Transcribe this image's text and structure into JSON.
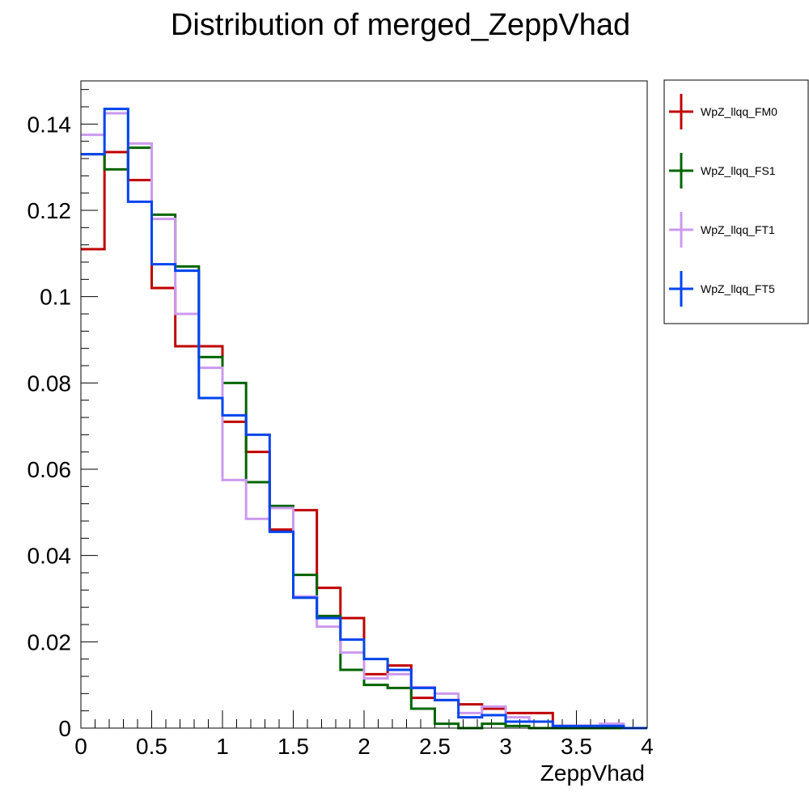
{
  "chart_data": {
    "type": "line",
    "title": "Distribution of merged_ZeppVhad",
    "xlabel": "ZeppVhad",
    "ylabel": "",
    "xlim": [
      0,
      4
    ],
    "ylim": [
      0,
      0.15
    ],
    "x_ticks": [
      0,
      0.5,
      1,
      1.5,
      2,
      2.5,
      3,
      3.5,
      4
    ],
    "x_tick_labels": [
      "0",
      "0.5",
      "1",
      "1.5",
      "2",
      "2.5",
      "3",
      "3.5",
      "4"
    ],
    "y_ticks": [
      0,
      0.02,
      0.04,
      0.06,
      0.08,
      0.1,
      0.12,
      0.14
    ],
    "y_tick_labels": [
      "0",
      "0.02",
      "0.04",
      "0.06",
      "0.08",
      "0.1",
      "0.12",
      "0.14"
    ],
    "bin_edges": [
      0,
      0.1667,
      0.3333,
      0.5,
      0.6667,
      0.8333,
      1.0,
      1.1667,
      1.3333,
      1.5,
      1.6667,
      1.8333,
      2.0,
      2.1667,
      2.3333,
      2.5,
      2.6667,
      2.8333,
      3.0,
      3.1667,
      3.3333,
      3.5,
      3.6667,
      3.8333,
      4.0
    ],
    "histogram_style": "step",
    "grid": false,
    "legend_position": "right-outside-top",
    "series": [
      {
        "name": "WpZ_llqq_FM0",
        "color": "#c00000",
        "values": [
          0.111,
          0.1335,
          0.127,
          0.102,
          0.0885,
          0.0885,
          0.071,
          0.064,
          0.046,
          0.0505,
          0.0325,
          0.0255,
          0.0125,
          0.0145,
          0.007,
          0.0065,
          0.0055,
          0.0045,
          0.0035,
          0.0035,
          0.0005,
          0.0005,
          0.0005,
          0.0
        ]
      },
      {
        "name": "WpZ_llqq_FS1",
        "color": "#006400",
        "values": [
          0.133,
          0.1295,
          0.1345,
          0.119,
          0.107,
          0.086,
          0.08,
          0.057,
          0.0515,
          0.0355,
          0.026,
          0.0135,
          0.01,
          0.0093,
          0.0045,
          0.001,
          0.0,
          0.001,
          0.0005,
          0.0,
          0.0,
          0.0,
          0.0,
          0.0
        ]
      },
      {
        "name": "WpZ_llqq_FT1",
        "color": "#cc99ee",
        "values": [
          0.1375,
          0.1425,
          0.1355,
          0.118,
          0.096,
          0.0835,
          0.0575,
          0.0485,
          0.051,
          0.0305,
          0.0235,
          0.0175,
          0.0115,
          0.0125,
          0.0095,
          0.008,
          0.0035,
          0.005,
          0.0025,
          0.0015,
          0.0005,
          0.0005,
          0.001,
          0.0
        ]
      },
      {
        "name": "WpZ_llqq_FT5",
        "color": "#0044ee",
        "values": [
          0.133,
          0.1435,
          0.122,
          0.1075,
          0.106,
          0.0765,
          0.0725,
          0.068,
          0.0455,
          0.0302,
          0.0255,
          0.0205,
          0.016,
          0.0135,
          0.0093,
          0.0065,
          0.0025,
          0.003,
          0.0015,
          0.0015,
          0.0005,
          0.0005,
          0.0005,
          0.0
        ]
      }
    ]
  }
}
